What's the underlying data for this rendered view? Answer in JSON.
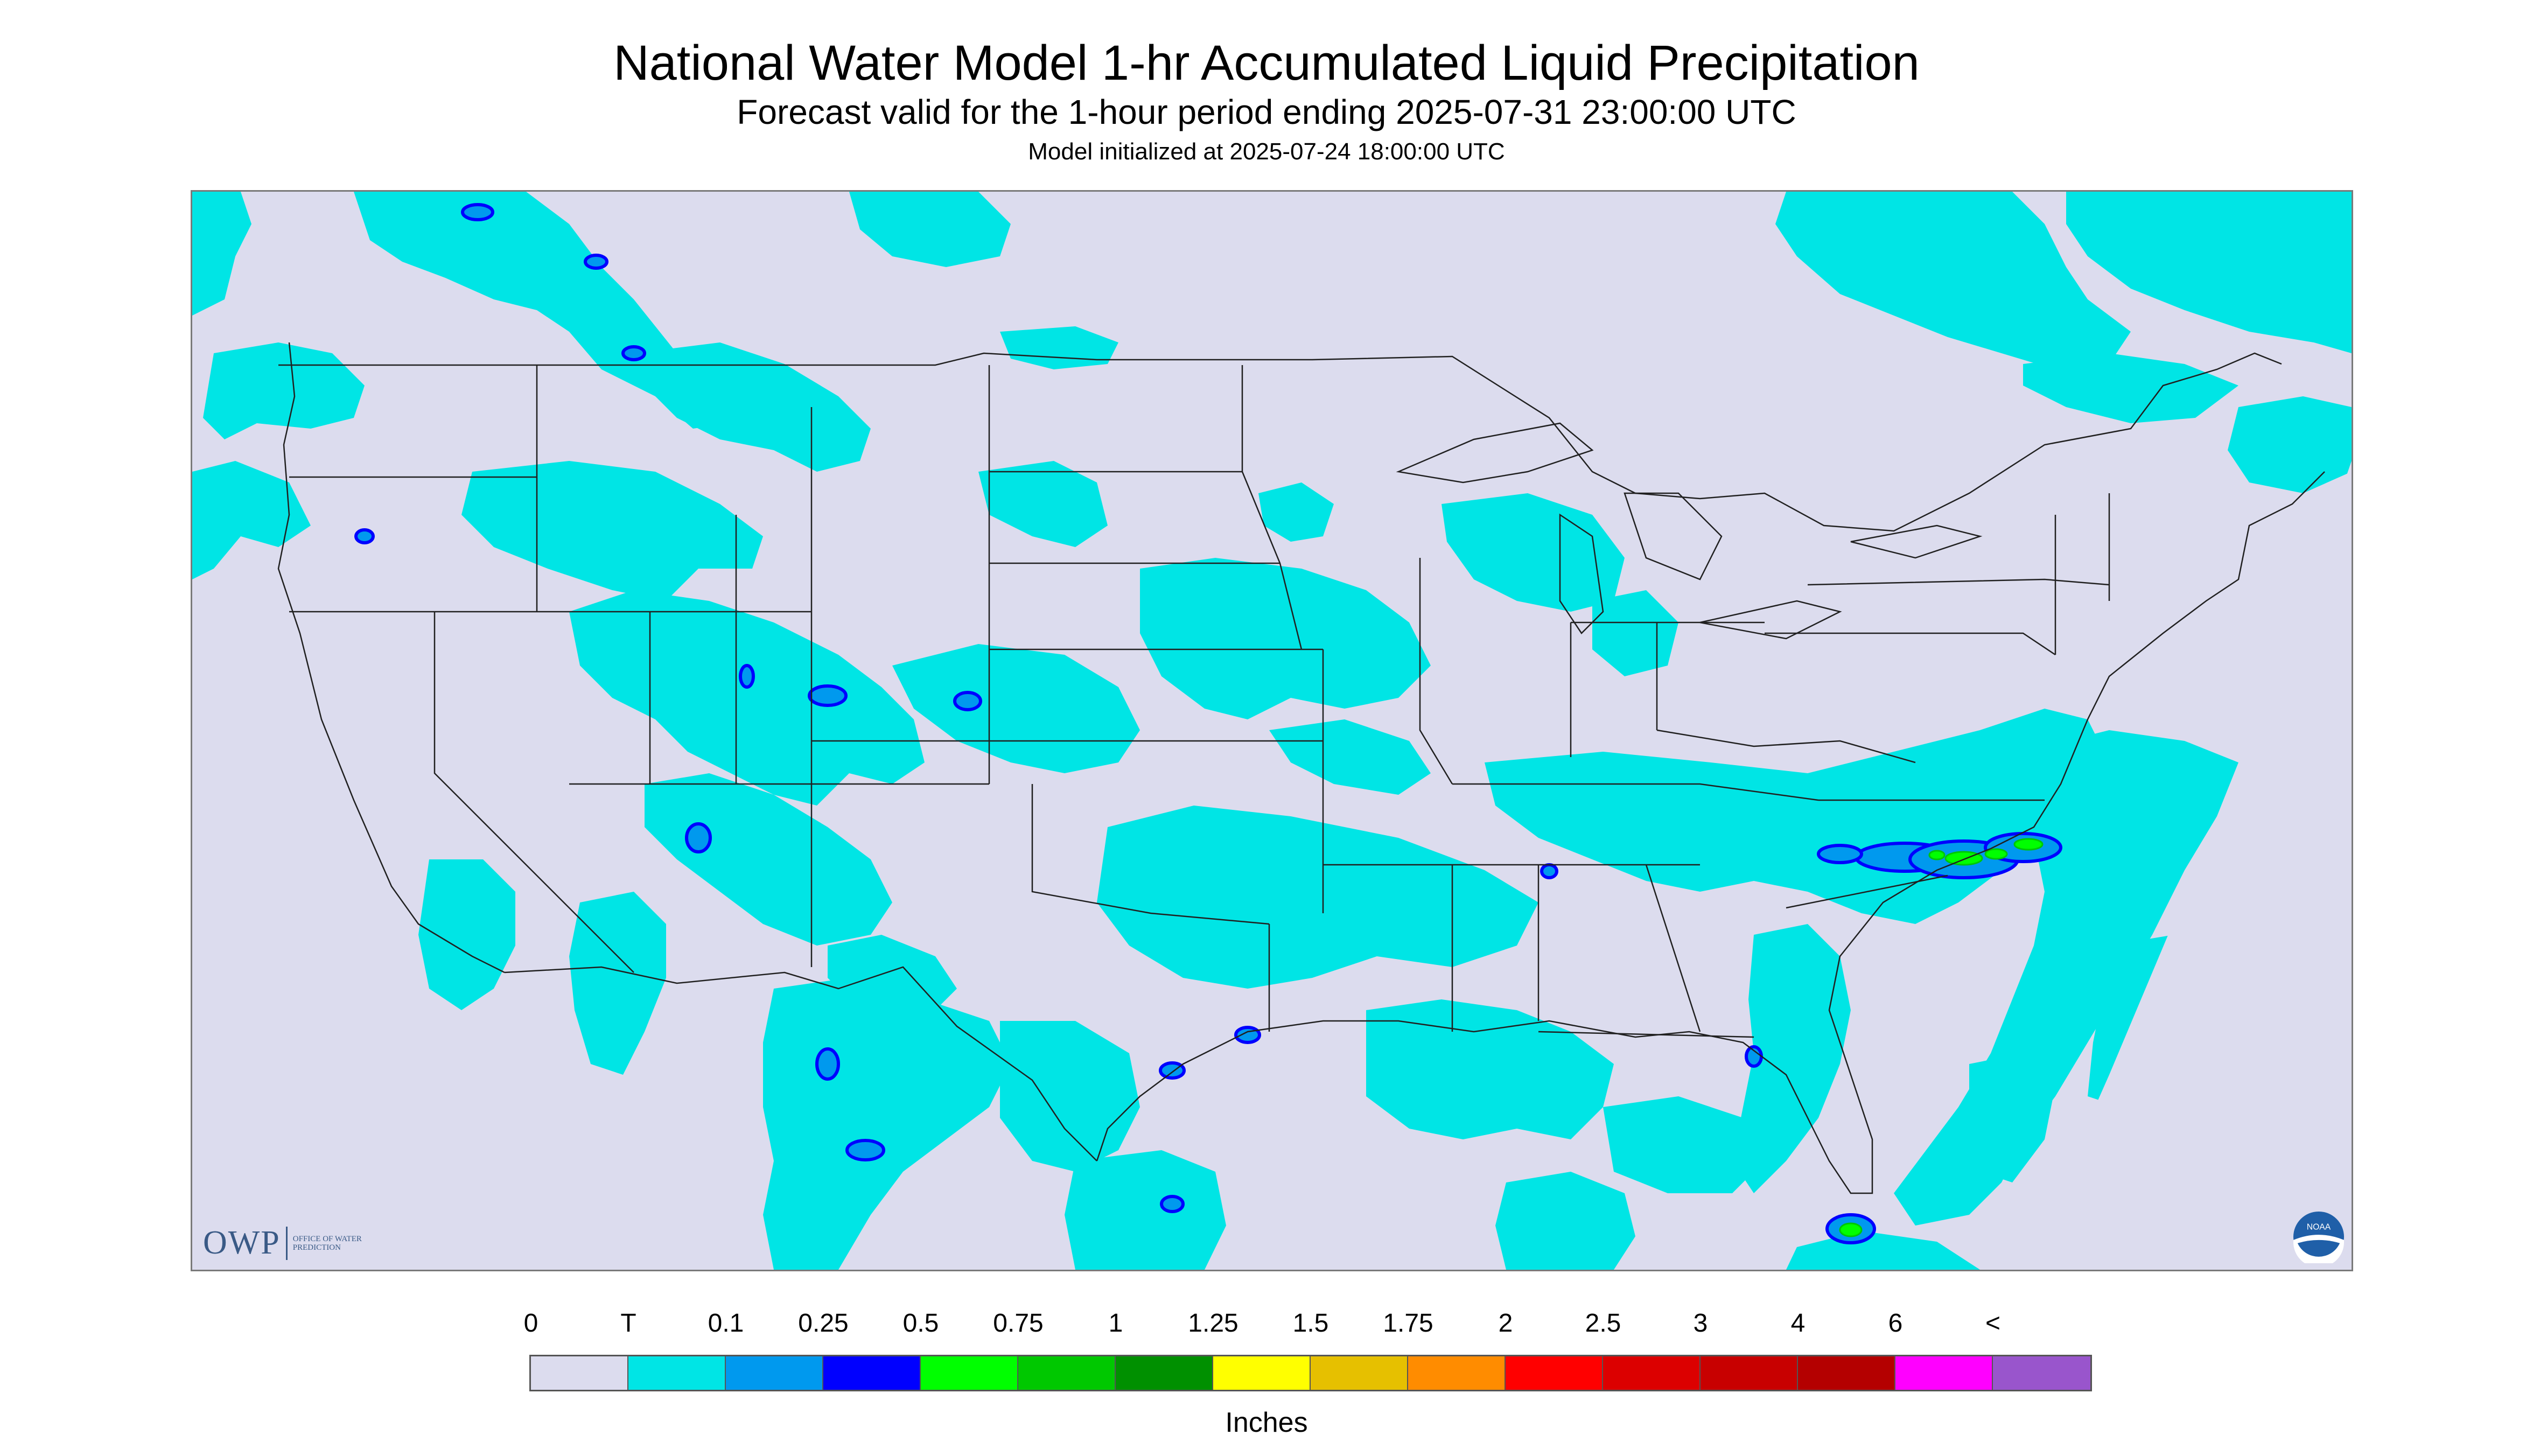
{
  "header": {
    "title": "National Water Model 1-hr Accumulated Liquid Precipitation",
    "subtitle": "Forecast valid for the 1-hour period ending 2025-07-31 23:00:00 UTC",
    "init": "Model initialized at 2025-07-24 18:00:00 UTC"
  },
  "map": {
    "background_color": "#dcdcee",
    "outside_color": "#ffffff",
    "trace_color": "#00e5e5",
    "light_blue_color": "#0099ee",
    "blue_color": "#0000ff",
    "green_color": "#00ff00",
    "dark_green_color": "#00c800",
    "boundary_color": "#202020"
  },
  "logos": {
    "owp_mark": "OWP",
    "owp_text": "OFFICE OF WATER PREDICTION",
    "noaa_text": "NOAA",
    "owp_icon": "owp-logo",
    "noaa_icon": "noaa-logo"
  },
  "legend": {
    "labels": [
      "0",
      "T",
      "0.1",
      "0.25",
      "0.5",
      "0.75",
      "1",
      "1.25",
      "1.5",
      "1.75",
      "2",
      "2.5",
      "3",
      "4",
      "6",
      "<"
    ],
    "colors": [
      "#dcdcee",
      "#00e5e5",
      "#0099ee",
      "#0000ff",
      "#00ff00",
      "#00c800",
      "#009000",
      "#ffff00",
      "#e6c000",
      "#ff8c00",
      "#ff0000",
      "#dc0000",
      "#c80000",
      "#b40000",
      "#ff00ff",
      "#9955cc"
    ],
    "units": "Inches"
  }
}
